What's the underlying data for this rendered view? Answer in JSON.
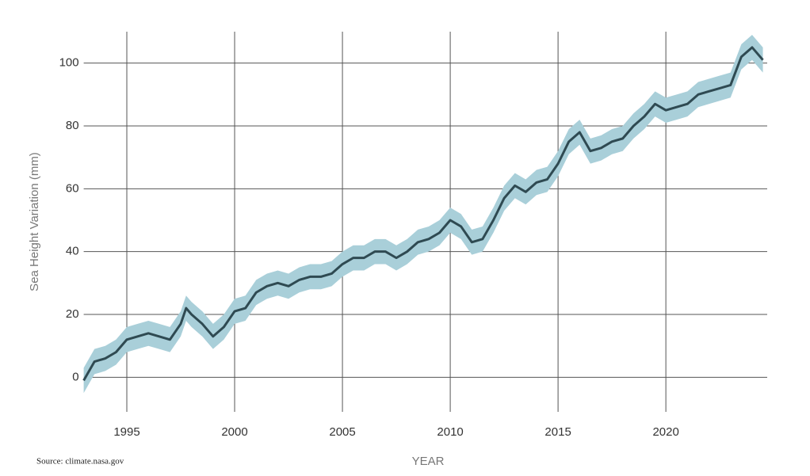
{
  "chart_data": {
    "type": "line",
    "x_label": "YEAR",
    "y_label": "Sea Height Variation (mm)",
    "source": "Source: climate.nasa.gov",
    "x": [
      1993.0,
      1993.5,
      1994.0,
      1994.5,
      1995.0,
      1995.5,
      1996.0,
      1996.5,
      1997.0,
      1997.5,
      1997.75,
      1998.0,
      1998.5,
      1999.0,
      1999.5,
      2000.0,
      2000.5,
      2001.0,
      2001.5,
      2002.0,
      2002.5,
      2003.0,
      2003.5,
      2004.0,
      2004.5,
      2005.0,
      2005.5,
      2006.0,
      2006.5,
      2007.0,
      2007.5,
      2008.0,
      2008.5,
      2009.0,
      2009.5,
      2010.0,
      2010.5,
      2011.0,
      2011.5,
      2012.0,
      2012.5,
      2013.0,
      2013.5,
      2014.0,
      2014.5,
      2015.0,
      2015.5,
      2016.0,
      2016.5,
      2017.0,
      2017.5,
      2018.0,
      2018.5,
      2019.0,
      2019.5,
      2020.0,
      2020.5,
      2021.0,
      2021.5,
      2022.0,
      2022.5,
      2023.0,
      2023.5,
      2024.0,
      2024.5
    ],
    "values": [
      -1,
      5,
      6,
      8,
      12,
      13,
      14,
      13,
      12,
      17,
      22,
      20,
      17,
      13,
      16,
      21,
      22,
      27,
      29,
      30,
      29,
      31,
      32,
      32,
      33,
      36,
      38,
      38,
      40,
      40,
      38,
      40,
      43,
      44,
      46,
      50,
      48,
      43,
      44,
      50,
      57,
      61,
      59,
      62,
      63,
      68,
      75,
      78,
      72,
      73,
      75,
      76,
      80,
      83,
      87,
      85,
      86,
      87,
      90,
      91,
      92,
      93,
      102,
      105,
      101
    ],
    "lower": [
      -5,
      1,
      2,
      4,
      8,
      9,
      10,
      9,
      8,
      13,
      18,
      16,
      13,
      9,
      12,
      17,
      18,
      23,
      25,
      26,
      25,
      27,
      28,
      28,
      29,
      32,
      34,
      34,
      36,
      36,
      34,
      36,
      39,
      40,
      42,
      46,
      44,
      39,
      40,
      46,
      53,
      57,
      55,
      58,
      59,
      64,
      71,
      74,
      68,
      69,
      71,
      72,
      76,
      79,
      83,
      81,
      82,
      83,
      86,
      87,
      88,
      89,
      98,
      101,
      97
    ],
    "upper": [
      3,
      9,
      10,
      12,
      16,
      17,
      18,
      17,
      16,
      21,
      26,
      24,
      21,
      17,
      20,
      25,
      26,
      31,
      33,
      34,
      33,
      35,
      36,
      36,
      37,
      40,
      42,
      42,
      44,
      44,
      42,
      44,
      47,
      48,
      50,
      54,
      52,
      47,
      48,
      54,
      61,
      65,
      63,
      66,
      67,
      72,
      79,
      82,
      76,
      77,
      79,
      80,
      84,
      87,
      91,
      89,
      90,
      91,
      94,
      95,
      96,
      97,
      106,
      109,
      105
    ],
    "color": "#2f4a52",
    "band_color": "#a9cfd9",
    "xlim": [
      1993,
      2024.7
    ],
    "ylim": [
      -11,
      110
    ],
    "xticks": [
      1995,
      2000,
      2005,
      2010,
      2015,
      2020
    ],
    "yticks": [
      0,
      20,
      40,
      60,
      80,
      100
    ],
    "grid": true
  }
}
